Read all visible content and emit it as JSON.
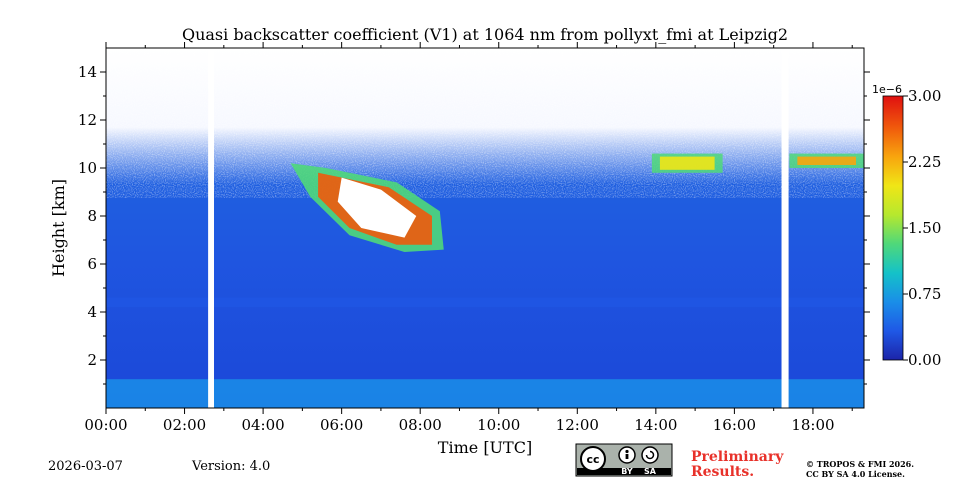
{
  "chart_data": {
    "type": "heatmap",
    "title": "Quasi backscatter coefficient (V1) at 1064 nm from pollyxt_fmi at Leipzig2",
    "xlabel": "Time [UTC]",
    "ylabel": "Height [km]",
    "x_range_hours": [
      0,
      19.3
    ],
    "x_ticks": [
      {
        "hour": 0,
        "label": "00:00"
      },
      {
        "hour": 2,
        "label": "02:00"
      },
      {
        "hour": 4,
        "label": "04:00"
      },
      {
        "hour": 6,
        "label": "06:00"
      },
      {
        "hour": 8,
        "label": "08:00"
      },
      {
        "hour": 10,
        "label": "10:00"
      },
      {
        "hour": 12,
        "label": "12:00"
      },
      {
        "hour": 14,
        "label": "14:00"
      },
      {
        "hour": 16,
        "label": "16:00"
      },
      {
        "hour": 18,
        "label": "18:00"
      }
    ],
    "y_range_km": [
      0,
      15
    ],
    "y_ticks": [
      {
        "value": 2,
        "label": "2"
      },
      {
        "value": 4,
        "label": "4"
      },
      {
        "value": 6,
        "label": "6"
      },
      {
        "value": 8,
        "label": "8"
      },
      {
        "value": 10,
        "label": "10"
      },
      {
        "value": 12,
        "label": "12"
      },
      {
        "value": 14,
        "label": "14"
      }
    ],
    "colorbar": {
      "range": [
        0.0,
        3.0
      ],
      "exponent_label": "1e−6",
      "ticks": [
        {
          "value": 0.0,
          "label": "0.00"
        },
        {
          "value": 0.75,
          "label": "0.75"
        },
        {
          "value": 1.5,
          "label": "1.50"
        },
        {
          "value": 2.25,
          "label": "2.25"
        },
        {
          "value": 3.0,
          "label": "3.00"
        }
      ],
      "colormap": [
        "#1c24a8",
        "#1f58e6",
        "#1a8ee8",
        "#14c2c8",
        "#4fd87a",
        "#b6e82e",
        "#f0e616",
        "#f8a50e",
        "#f05a0c",
        "#e01010"
      ]
    },
    "data_gaps_hours": [
      [
        2.6,
        2.75
      ],
      [
        17.2,
        17.38
      ]
    ],
    "features": [
      {
        "name": "boundary layer",
        "start_hour": 0,
        "end_hour": 19.3,
        "base_km": 0,
        "top_km": 1.2,
        "level": 0.55
      },
      {
        "name": "residual aerosol layer",
        "start_hour": 0,
        "end_hour": 19.3,
        "base_km": 4.2,
        "top_km": 4.6,
        "level": 0.3
      },
      {
        "name": "cirrus cloud",
        "start_hour": 4.7,
        "end_hour": 9.2,
        "base_km": 6.5,
        "top_km": 10.3,
        "level": 3.0
      },
      {
        "name": "thin cirrus",
        "start_hour": 13.9,
        "end_hour": 15.7,
        "base_km": 9.8,
        "top_km": 10.6,
        "level": 2.0
      },
      {
        "name": "thin cirrus",
        "start_hour": 17.4,
        "end_hour": 19.3,
        "base_km": 10.0,
        "top_km": 10.6,
        "level": 2.2
      }
    ]
  },
  "footer": {
    "date": "2026-03-07",
    "version": "Version: 4.0",
    "license_badge": {
      "cc": "cc",
      "by": "BY",
      "sa": "SA"
    },
    "preliminary_line1": "Preliminary",
    "preliminary_line2": "Results.",
    "copyright_line1": "© TROPOS & FMI 2026.",
    "copyright_line2": "CC BY SA 4.0 License."
  }
}
